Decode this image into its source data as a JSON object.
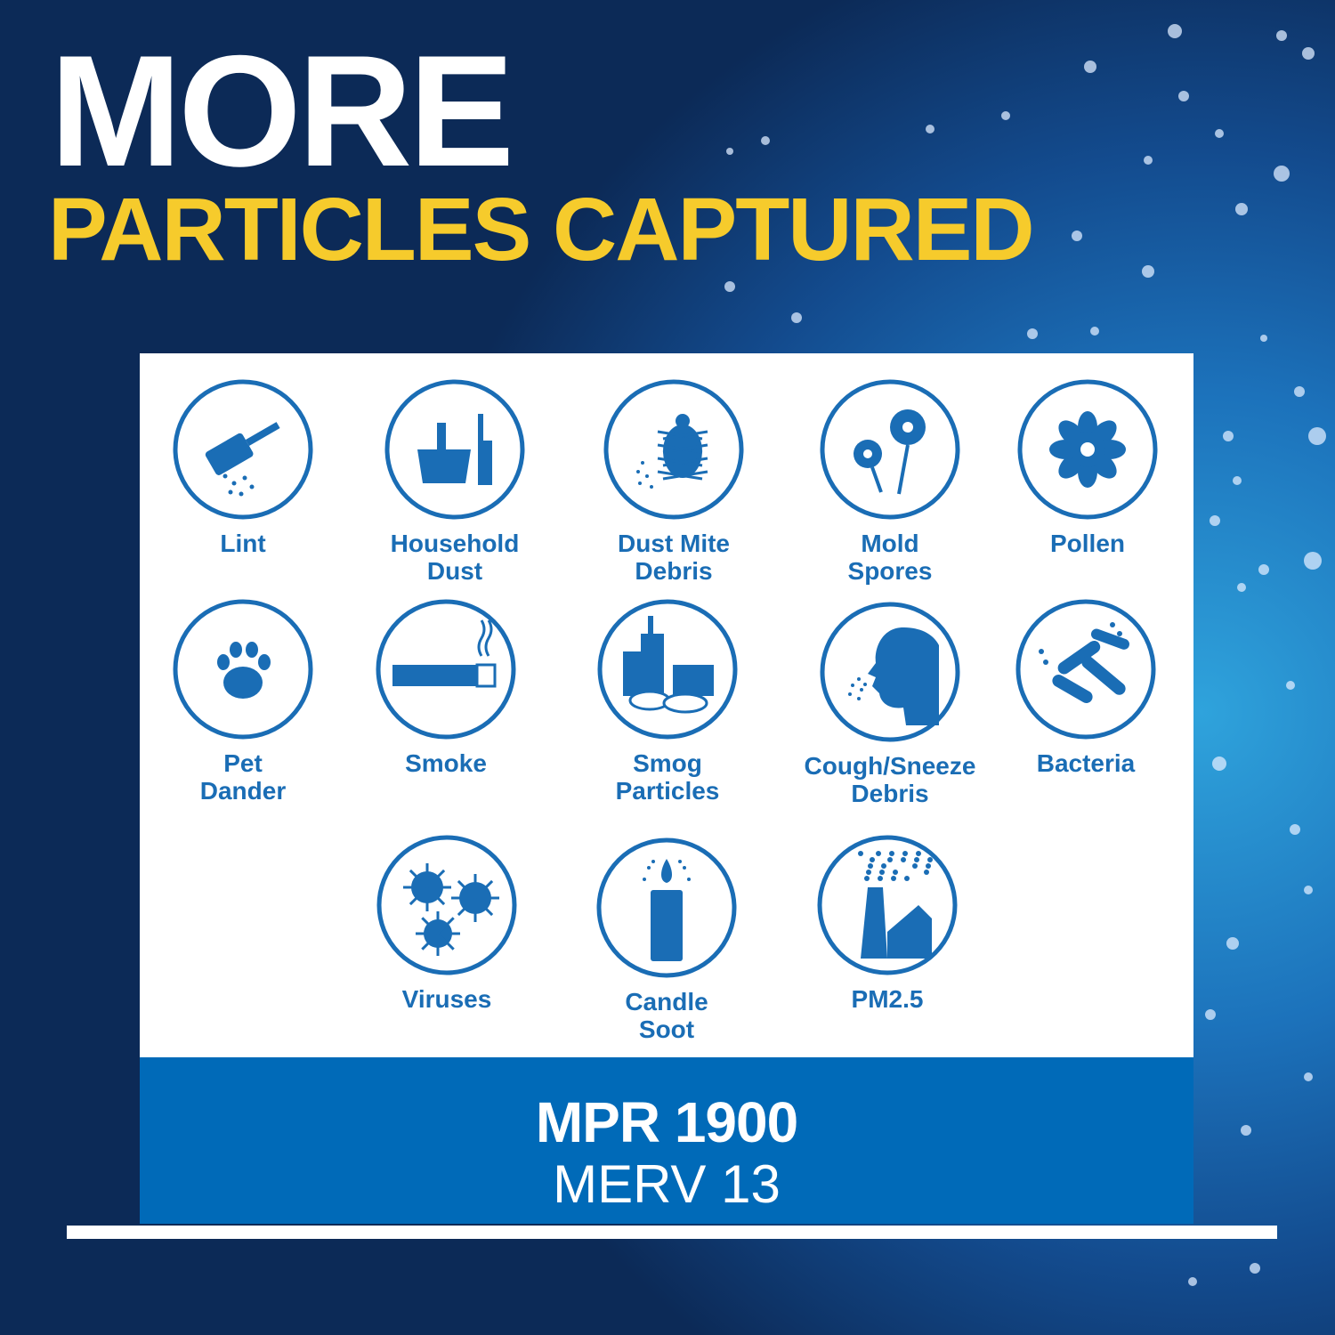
{
  "headline": {
    "line1": "MORE",
    "line2": "PARTICLES CAPTURED"
  },
  "colors": {
    "headline_accent": "#f6cb2c",
    "icon_blue": "#1a6db5",
    "band": "#006ab8"
  },
  "particles": [
    {
      "label": "Lint",
      "icon": "lint-roller-icon"
    },
    {
      "label": "Household\nDust",
      "icon": "dustpan-brush-icon"
    },
    {
      "label": "Dust Mite\nDebris",
      "icon": "dust-mite-icon"
    },
    {
      "label": "Mold\nSpores",
      "icon": "mold-flowers-icon"
    },
    {
      "label": "Pollen",
      "icon": "pollen-flower-icon"
    },
    {
      "label": "Pet\nDander",
      "icon": "paw-print-icon"
    },
    {
      "label": "Smoke",
      "icon": "cigarette-icon"
    },
    {
      "label": "Smog\nParticles",
      "icon": "smog-city-icon"
    },
    {
      "label": "Cough/Sneeze\nDebris",
      "icon": "sneeze-face-icon"
    },
    {
      "label": "Bacteria",
      "icon": "bacteria-icon"
    },
    {
      "label": "Viruses",
      "icon": "virus-icon"
    },
    {
      "label": "Candle\nSoot",
      "icon": "candle-icon"
    },
    {
      "label": "PM2.5",
      "icon": "smokestack-icon"
    }
  ],
  "rating": {
    "mpr": "MPR 1900",
    "merv": "MERV 13"
  }
}
